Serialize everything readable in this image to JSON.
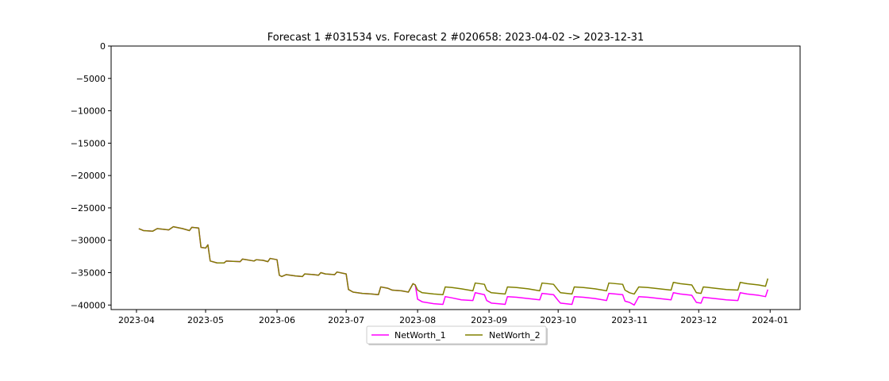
{
  "chart_data": {
    "type": "line",
    "title": "Forecast 1 #031534 vs. Forecast 2 #020658: 2023-04-02 -> 2023-12-31",
    "xlabel": "",
    "ylabel": "",
    "xlim": [
      "2023-03-21",
      "2024-01-14"
    ],
    "ylim": [
      -40700,
      0
    ],
    "x_ticks": [
      "2023-04",
      "2023-05",
      "2023-06",
      "2023-07",
      "2023-08",
      "2023-09",
      "2023-10",
      "2023-11",
      "2023-12",
      "2024-01"
    ],
    "y_ticks": [
      0,
      -5000,
      -10000,
      -15000,
      -20000,
      -25000,
      -30000,
      -35000,
      -40000
    ],
    "y_tick_labels": [
      "0",
      "−5000",
      "−10000",
      "−15000",
      "−20000",
      "−25000",
      "−30000",
      "−35000",
      "−40000"
    ],
    "grid": false,
    "legend": {
      "position": "bottom-center",
      "columns": 2
    },
    "series": [
      {
        "name": "NetWorth_1",
        "color": "#ff00ff",
        "points": [
          [
            "2023-04-02",
            -28200
          ],
          [
            "2023-04-04",
            -28500
          ],
          [
            "2023-04-08",
            -28600
          ],
          [
            "2023-04-10",
            -28200
          ],
          [
            "2023-04-15",
            -28400
          ],
          [
            "2023-04-17",
            -27900
          ],
          [
            "2023-04-21",
            -28200
          ],
          [
            "2023-04-24",
            -28500
          ],
          [
            "2023-04-25",
            -28000
          ],
          [
            "2023-04-28",
            -28100
          ],
          [
            "2023-04-29",
            -31100
          ],
          [
            "2023-05-01",
            -31200
          ],
          [
            "2023-05-02",
            -30700
          ],
          [
            "2023-05-03",
            -33200
          ],
          [
            "2023-05-06",
            -33500
          ],
          [
            "2023-05-09",
            -33500
          ],
          [
            "2023-05-10",
            -33200
          ],
          [
            "2023-05-16",
            -33300
          ],
          [
            "2023-05-17",
            -32900
          ],
          [
            "2023-05-22",
            -33200
          ],
          [
            "2023-05-23",
            -33000
          ],
          [
            "2023-05-26",
            -33100
          ],
          [
            "2023-05-28",
            -33300
          ],
          [
            "2023-05-29",
            -32800
          ],
          [
            "2023-06-01",
            -33000
          ],
          [
            "2023-06-02",
            -35400
          ],
          [
            "2023-06-03",
            -35600
          ],
          [
            "2023-06-05",
            -35300
          ],
          [
            "2023-06-09",
            -35500
          ],
          [
            "2023-06-12",
            -35600
          ],
          [
            "2023-06-13",
            -35200
          ],
          [
            "2023-06-17",
            -35300
          ],
          [
            "2023-06-19",
            -35400
          ],
          [
            "2023-06-20",
            -35000
          ],
          [
            "2023-06-22",
            -35200
          ],
          [
            "2023-06-26",
            -35300
          ],
          [
            "2023-06-27",
            -34900
          ],
          [
            "2023-07-01",
            -35200
          ],
          [
            "2023-07-02",
            -37600
          ],
          [
            "2023-07-04",
            -38000
          ],
          [
            "2023-07-08",
            -38200
          ],
          [
            "2023-07-12",
            -38300
          ],
          [
            "2023-07-15",
            -38400
          ],
          [
            "2023-07-16",
            -37200
          ],
          [
            "2023-07-19",
            -37400
          ],
          [
            "2023-07-21",
            -37700
          ],
          [
            "2023-07-25",
            -37800
          ],
          [
            "2023-07-28",
            -38000
          ],
          [
            "2023-07-30",
            -36700
          ],
          [
            "2023-07-31",
            -36900
          ],
          [
            "2023-08-01",
            -39100
          ],
          [
            "2023-08-03",
            -39500
          ],
          [
            "2023-08-08",
            -39800
          ],
          [
            "2023-08-12",
            -39900
          ],
          [
            "2023-08-13",
            -38700
          ],
          [
            "2023-08-16",
            -38900
          ],
          [
            "2023-08-20",
            -39200
          ],
          [
            "2023-08-25",
            -39300
          ],
          [
            "2023-08-26",
            -38100
          ],
          [
            "2023-08-30",
            -38400
          ],
          [
            "2023-08-31",
            -39300
          ],
          [
            "2023-09-02",
            -39700
          ],
          [
            "2023-09-08",
            -39900
          ],
          [
            "2023-09-09",
            -38700
          ],
          [
            "2023-09-13",
            -38800
          ],
          [
            "2023-09-18",
            -39000
          ],
          [
            "2023-09-23",
            -39200
          ],
          [
            "2023-09-24",
            -38200
          ],
          [
            "2023-09-29",
            -38400
          ],
          [
            "2023-10-01",
            -39300
          ],
          [
            "2023-10-02",
            -39700
          ],
          [
            "2023-10-07",
            -39900
          ],
          [
            "2023-10-08",
            -38700
          ],
          [
            "2023-10-12",
            -38800
          ],
          [
            "2023-10-17",
            -39000
          ],
          [
            "2023-10-22",
            -39300
          ],
          [
            "2023-10-23",
            -38200
          ],
          [
            "2023-10-29",
            -38400
          ],
          [
            "2023-10-30",
            -39400
          ],
          [
            "2023-11-01",
            -39600
          ],
          [
            "2023-11-03",
            -40000
          ],
          [
            "2023-11-05",
            -38700
          ],
          [
            "2023-11-09",
            -38800
          ],
          [
            "2023-11-14",
            -39000
          ],
          [
            "2023-11-19",
            -39200
          ],
          [
            "2023-11-20",
            -38100
          ],
          [
            "2023-11-23",
            -38300
          ],
          [
            "2023-11-28",
            -38500
          ],
          [
            "2023-11-30",
            -39600
          ],
          [
            "2023-12-02",
            -39700
          ],
          [
            "2023-12-03",
            -38800
          ],
          [
            "2023-12-08",
            -39000
          ],
          [
            "2023-12-13",
            -39200
          ],
          [
            "2023-12-18",
            -39300
          ],
          [
            "2023-12-19",
            -38100
          ],
          [
            "2023-12-22",
            -38300
          ],
          [
            "2023-12-27",
            -38500
          ],
          [
            "2023-12-30",
            -38700
          ],
          [
            "2023-12-31",
            -37600
          ]
        ]
      },
      {
        "name": "NetWorth_2",
        "color": "#808000",
        "points": [
          [
            "2023-04-02",
            -28200
          ],
          [
            "2023-04-04",
            -28500
          ],
          [
            "2023-04-08",
            -28600
          ],
          [
            "2023-04-10",
            -28200
          ],
          [
            "2023-04-15",
            -28400
          ],
          [
            "2023-04-17",
            -27900
          ],
          [
            "2023-04-21",
            -28200
          ],
          [
            "2023-04-24",
            -28500
          ],
          [
            "2023-04-25",
            -28000
          ],
          [
            "2023-04-28",
            -28100
          ],
          [
            "2023-04-29",
            -31100
          ],
          [
            "2023-05-01",
            -31200
          ],
          [
            "2023-05-02",
            -30700
          ],
          [
            "2023-05-03",
            -33200
          ],
          [
            "2023-05-06",
            -33500
          ],
          [
            "2023-05-09",
            -33500
          ],
          [
            "2023-05-10",
            -33200
          ],
          [
            "2023-05-16",
            -33300
          ],
          [
            "2023-05-17",
            -32900
          ],
          [
            "2023-05-22",
            -33200
          ],
          [
            "2023-05-23",
            -33000
          ],
          [
            "2023-05-26",
            -33100
          ],
          [
            "2023-05-28",
            -33300
          ],
          [
            "2023-05-29",
            -32800
          ],
          [
            "2023-06-01",
            -33000
          ],
          [
            "2023-06-02",
            -35400
          ],
          [
            "2023-06-03",
            -35600
          ],
          [
            "2023-06-05",
            -35300
          ],
          [
            "2023-06-09",
            -35500
          ],
          [
            "2023-06-12",
            -35600
          ],
          [
            "2023-06-13",
            -35200
          ],
          [
            "2023-06-17",
            -35300
          ],
          [
            "2023-06-19",
            -35400
          ],
          [
            "2023-06-20",
            -35000
          ],
          [
            "2023-06-22",
            -35200
          ],
          [
            "2023-06-26",
            -35300
          ],
          [
            "2023-06-27",
            -34900
          ],
          [
            "2023-07-01",
            -35200
          ],
          [
            "2023-07-02",
            -37600
          ],
          [
            "2023-07-04",
            -38000
          ],
          [
            "2023-07-08",
            -38200
          ],
          [
            "2023-07-12",
            -38300
          ],
          [
            "2023-07-15",
            -38400
          ],
          [
            "2023-07-16",
            -37200
          ],
          [
            "2023-07-19",
            -37400
          ],
          [
            "2023-07-21",
            -37700
          ],
          [
            "2023-07-25",
            -37800
          ],
          [
            "2023-07-28",
            -38000
          ],
          [
            "2023-07-30",
            -36700
          ],
          [
            "2023-07-31",
            -36900
          ],
          [
            "2023-08-01",
            -37700
          ],
          [
            "2023-08-03",
            -38100
          ],
          [
            "2023-08-08",
            -38300
          ],
          [
            "2023-08-12",
            -38400
          ],
          [
            "2023-08-13",
            -37200
          ],
          [
            "2023-08-16",
            -37300
          ],
          [
            "2023-08-20",
            -37500
          ],
          [
            "2023-08-25",
            -37800
          ],
          [
            "2023-08-26",
            -36600
          ],
          [
            "2023-08-30",
            -36800
          ],
          [
            "2023-08-31",
            -37700
          ],
          [
            "2023-09-02",
            -38100
          ],
          [
            "2023-09-08",
            -38300
          ],
          [
            "2023-09-09",
            -37200
          ],
          [
            "2023-09-13",
            -37300
          ],
          [
            "2023-09-18",
            -37500
          ],
          [
            "2023-09-23",
            -37800
          ],
          [
            "2023-09-24",
            -36600
          ],
          [
            "2023-09-29",
            -36800
          ],
          [
            "2023-10-01",
            -37700
          ],
          [
            "2023-10-02",
            -38100
          ],
          [
            "2023-10-07",
            -38300
          ],
          [
            "2023-10-08",
            -37200
          ],
          [
            "2023-10-12",
            -37300
          ],
          [
            "2023-10-17",
            -37500
          ],
          [
            "2023-10-22",
            -37800
          ],
          [
            "2023-10-23",
            -36600
          ],
          [
            "2023-10-29",
            -36800
          ],
          [
            "2023-10-30",
            -37700
          ],
          [
            "2023-11-01",
            -38100
          ],
          [
            "2023-11-03",
            -38300
          ],
          [
            "2023-11-05",
            -37200
          ],
          [
            "2023-11-09",
            -37300
          ],
          [
            "2023-11-14",
            -37500
          ],
          [
            "2023-11-19",
            -37700
          ],
          [
            "2023-11-20",
            -36500
          ],
          [
            "2023-11-23",
            -36700
          ],
          [
            "2023-11-28",
            -36900
          ],
          [
            "2023-11-30",
            -38100
          ],
          [
            "2023-12-02",
            -38200
          ],
          [
            "2023-12-03",
            -37200
          ],
          [
            "2023-12-08",
            -37400
          ],
          [
            "2023-12-13",
            -37600
          ],
          [
            "2023-12-18",
            -37700
          ],
          [
            "2023-12-19",
            -36500
          ],
          [
            "2023-12-22",
            -36700
          ],
          [
            "2023-12-27",
            -36900
          ],
          [
            "2023-12-30",
            -37100
          ],
          [
            "2023-12-31",
            -35900
          ]
        ]
      }
    ]
  }
}
